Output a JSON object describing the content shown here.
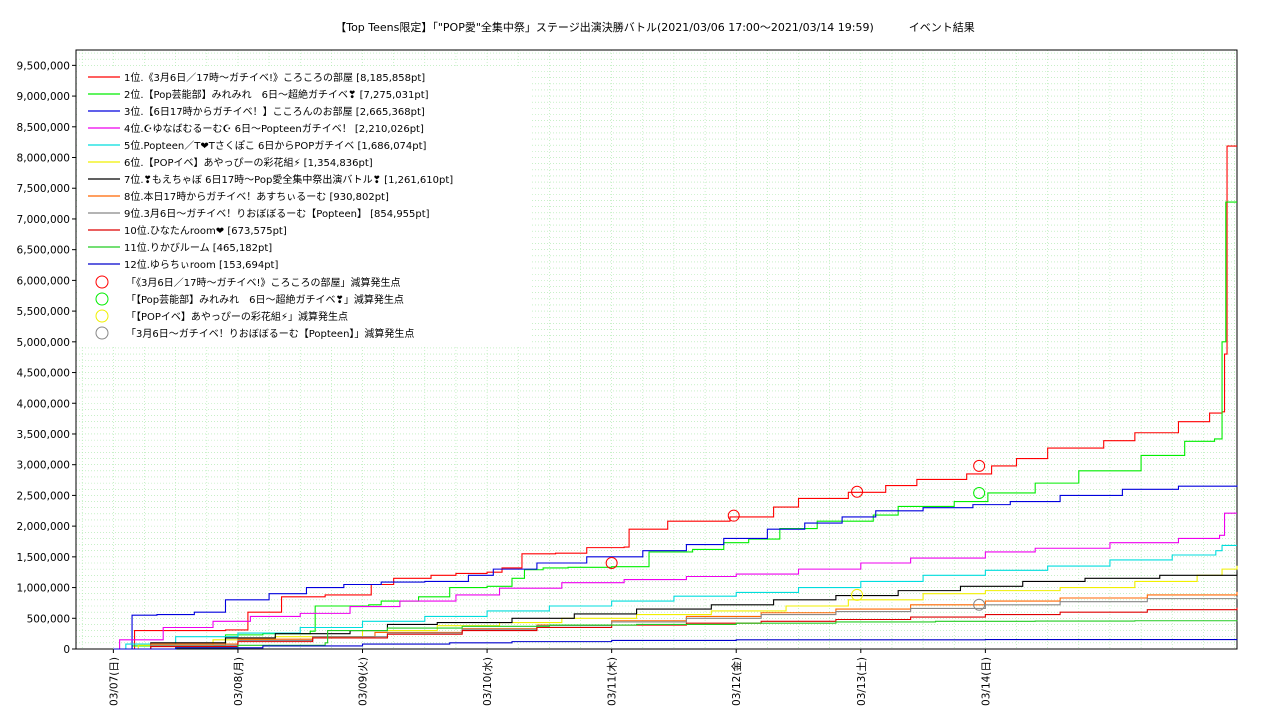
{
  "chart_data": {
    "type": "line",
    "title": "【Top Teens限定】「\"POP愛\"全集中祭」ステージ出演決勝バトル(2021/03/06 17:00～2021/03/14 19:59)          イベント結果",
    "xlabel": "",
    "ylabel": "",
    "ylim": [
      0,
      9750000
    ],
    "x_range_days": [
      "2021/03/06 17:00",
      "2021/03/14 19:59"
    ],
    "yticks": [
      "0",
      "500,000",
      "1,000,000",
      "1,500,000",
      "2,000,000",
      "2,500,000",
      "3,000,000",
      "3,500,000",
      "4,000,000",
      "4,500,000",
      "5,000,000",
      "5,500,000",
      "6,000,000",
      "6,500,000",
      "7,000,000",
      "7,500,000",
      "8,000,000",
      "8,500,000",
      "9,000,000",
      "9,500,000"
    ],
    "xticks": [
      "03/07(日)",
      "03/08(月)",
      "03/09(火)",
      "03/10(水)",
      "03/11(木)",
      "03/12(金)",
      "03/13(土)",
      "03/14(日)"
    ],
    "grid": true,
    "legend_position": "top-left",
    "series": [
      {
        "name": "1位.《3月6日／17時〜ガチイベ!》ころころの部屋 [8,185,858pt]",
        "color": "#ff0000",
        "points": [
          [
            0,
            0
          ],
          [
            0.17,
            300000
          ],
          [
            0.9,
            310000
          ],
          [
            1.08,
            600000
          ],
          [
            1.35,
            850000
          ],
          [
            1.7,
            880000
          ],
          [
            2.07,
            1050000
          ],
          [
            2.25,
            1150000
          ],
          [
            2.55,
            1200000
          ],
          [
            2.75,
            1230000
          ],
          [
            3.0,
            1250000
          ],
          [
            3.12,
            1320000
          ],
          [
            3.28,
            1550000
          ],
          [
            3.55,
            1560000
          ],
          [
            3.8,
            1650000
          ],
          [
            4.1,
            1660000
          ],
          [
            4.14,
            1950000
          ],
          [
            4.45,
            2080000
          ],
          [
            4.95,
            2150000
          ],
          [
            5.3,
            2310000
          ],
          [
            5.5,
            2450000
          ],
          [
            5.9,
            2550000
          ],
          [
            6.2,
            2660000
          ],
          [
            6.45,
            2760000
          ],
          [
            6.85,
            2850000
          ],
          [
            7.05,
            2980000
          ],
          [
            7.25,
            3100000
          ],
          [
            7.5,
            3270000
          ],
          [
            7.95,
            3390000
          ],
          [
            8.2,
            3520000
          ],
          [
            8.55,
            3700000
          ],
          [
            8.8,
            3840000
          ],
          [
            8.9,
            3860000
          ],
          [
            8.92,
            4800000
          ],
          [
            8.94,
            8185858
          ],
          [
            9.02,
            8185858
          ]
        ]
      },
      {
        "name": "2位.【Pop芸能部】みれみれ　6日〜超絶ガチイベ❣ [7,275,031pt]",
        "color": "#00ee00",
        "points": [
          [
            0,
            0
          ],
          [
            0.15,
            50000
          ],
          [
            0.9,
            230000
          ],
          [
            1.2,
            250000
          ],
          [
            1.58,
            290000
          ],
          [
            1.62,
            700000
          ],
          [
            2.05,
            720000
          ],
          [
            2.15,
            780000
          ],
          [
            2.45,
            850000
          ],
          [
            2.7,
            1000000
          ],
          [
            3.0,
            1020000
          ],
          [
            3.2,
            1150000
          ],
          [
            3.3,
            1290000
          ],
          [
            3.45,
            1320000
          ],
          [
            3.65,
            1330000
          ],
          [
            4.0,
            1340000
          ],
          [
            4.3,
            1580000
          ],
          [
            4.65,
            1620000
          ],
          [
            4.9,
            1730000
          ],
          [
            5.1,
            1790000
          ],
          [
            5.35,
            1960000
          ],
          [
            5.65,
            2080000
          ],
          [
            6.1,
            2180000
          ],
          [
            6.3,
            2320000
          ],
          [
            6.75,
            2400000
          ],
          [
            7.02,
            2540000
          ],
          [
            7.4,
            2700000
          ],
          [
            7.75,
            2900000
          ],
          [
            8.25,
            3150000
          ],
          [
            8.6,
            3380000
          ],
          [
            8.84,
            3420000
          ],
          [
            8.9,
            5000000
          ],
          [
            8.93,
            7275031
          ],
          [
            9.02,
            7275031
          ]
        ]
      },
      {
        "name": "3位.【6日17時からガチイベ！】こころんのお部屋 [2,665,368pt]",
        "color": "#0000dd",
        "points": [
          [
            0,
            0
          ],
          [
            0.15,
            550000
          ],
          [
            0.35,
            560000
          ],
          [
            0.65,
            600000
          ],
          [
            0.9,
            800000
          ],
          [
            1.25,
            900000
          ],
          [
            1.55,
            1000000
          ],
          [
            1.85,
            1050000
          ],
          [
            2.15,
            1090000
          ],
          [
            2.5,
            1100000
          ],
          [
            2.85,
            1200000
          ],
          [
            3.05,
            1300000
          ],
          [
            3.4,
            1400000
          ],
          [
            3.8,
            1500000
          ],
          [
            4.25,
            1600000
          ],
          [
            4.6,
            1700000
          ],
          [
            4.9,
            1800000
          ],
          [
            5.25,
            1950000
          ],
          [
            5.55,
            2050000
          ],
          [
            5.85,
            2150000
          ],
          [
            6.12,
            2250000
          ],
          [
            6.5,
            2300000
          ],
          [
            6.9,
            2350000
          ],
          [
            7.2,
            2400000
          ],
          [
            7.6,
            2500000
          ],
          [
            8.1,
            2600000
          ],
          [
            8.55,
            2650000
          ],
          [
            9.02,
            2665368
          ]
        ]
      },
      {
        "name": "4位.☪ゆなばむるーむ☪ 6日〜Popteenガチイベ！ [2,210,026pt]",
        "color": "#ee00ee",
        "points": [
          [
            0,
            0
          ],
          [
            0.05,
            150000
          ],
          [
            0.4,
            350000
          ],
          [
            0.8,
            450000
          ],
          [
            1.1,
            530000
          ],
          [
            1.5,
            580000
          ],
          [
            1.9,
            690000
          ],
          [
            2.3,
            780000
          ],
          [
            2.75,
            880000
          ],
          [
            3.1,
            990000
          ],
          [
            3.6,
            1080000
          ],
          [
            4.1,
            1130000
          ],
          [
            4.6,
            1180000
          ],
          [
            5.0,
            1220000
          ],
          [
            5.5,
            1300000
          ],
          [
            6.0,
            1400000
          ],
          [
            6.4,
            1480000
          ],
          [
            7.0,
            1580000
          ],
          [
            7.4,
            1640000
          ],
          [
            8.0,
            1730000
          ],
          [
            8.55,
            1800000
          ],
          [
            8.88,
            1850000
          ],
          [
            8.92,
            2210026
          ],
          [
            9.02,
            2210026
          ]
        ]
      },
      {
        "name": "5位.Popteen／T❤Tさくぽこ 6日からPOPガチイベ [1,686,074pt]",
        "color": "#00dddd",
        "points": [
          [
            0,
            0
          ],
          [
            0.1,
            80000
          ],
          [
            0.5,
            200000
          ],
          [
            1.0,
            260000
          ],
          [
            1.5,
            350000
          ],
          [
            2.0,
            450000
          ],
          [
            2.5,
            530000
          ],
          [
            3.0,
            620000
          ],
          [
            3.5,
            700000
          ],
          [
            4.0,
            780000
          ],
          [
            4.5,
            860000
          ],
          [
            5.0,
            920000
          ],
          [
            5.5,
            1000000
          ],
          [
            6.0,
            1100000
          ],
          [
            6.5,
            1200000
          ],
          [
            7.0,
            1280000
          ],
          [
            7.5,
            1350000
          ],
          [
            8.0,
            1450000
          ],
          [
            8.5,
            1530000
          ],
          [
            8.85,
            1600000
          ],
          [
            8.9,
            1686074
          ],
          [
            9.02,
            1686074
          ]
        ]
      },
      {
        "name": "6位.【POPイベ】あやっぴーの彩花組⚡ [1,354,836pt]",
        "color": "#f0f000",
        "points": [
          [
            0,
            0
          ],
          [
            0.2,
            60000
          ],
          [
            0.8,
            150000
          ],
          [
            1.3,
            200000
          ],
          [
            2.0,
            300000
          ],
          [
            2.6,
            380000
          ],
          [
            3.1,
            430000
          ],
          [
            3.6,
            500000
          ],
          [
            4.2,
            560000
          ],
          [
            4.8,
            620000
          ],
          [
            5.4,
            700000
          ],
          [
            5.9,
            800000
          ],
          [
            6.5,
            900000
          ],
          [
            7.0,
            950000
          ],
          [
            7.6,
            1000000
          ],
          [
            8.2,
            1100000
          ],
          [
            8.7,
            1200000
          ],
          [
            8.9,
            1300000
          ],
          [
            9.02,
            1354836
          ]
        ]
      },
      {
        "name": "7位.❣もえちゃぼ 6日17時〜Pop愛全集中祭出演バトル❣ [1,261,610pt]",
        "color": "#000000",
        "points": [
          [
            0,
            0
          ],
          [
            0.3,
            100000
          ],
          [
            0.9,
            180000
          ],
          [
            1.3,
            250000
          ],
          [
            1.9,
            300000
          ],
          [
            2.2,
            400000
          ],
          [
            2.6,
            430000
          ],
          [
            3.2,
            500000
          ],
          [
            3.7,
            570000
          ],
          [
            4.2,
            650000
          ],
          [
            4.8,
            720000
          ],
          [
            5.3,
            800000
          ],
          [
            5.8,
            870000
          ],
          [
            6.3,
            950000
          ],
          [
            6.8,
            1020000
          ],
          [
            7.3,
            1100000
          ],
          [
            7.8,
            1150000
          ],
          [
            8.4,
            1200000
          ],
          [
            9.02,
            1261610
          ]
        ]
      },
      {
        "name": "8位.本日17時からガチイベ！あすちぃるーむ [930,802pt]",
        "color": "#ff6600",
        "points": [
          [
            0,
            0
          ],
          [
            0.3,
            80000
          ],
          [
            1.0,
            160000
          ],
          [
            1.6,
            200000
          ],
          [
            2.1,
            270000
          ],
          [
            2.8,
            330000
          ],
          [
            3.4,
            390000
          ],
          [
            4.0,
            460000
          ],
          [
            4.6,
            530000
          ],
          [
            5.2,
            590000
          ],
          [
            5.8,
            650000
          ],
          [
            6.4,
            720000
          ],
          [
            7.0,
            780000
          ],
          [
            7.6,
            830000
          ],
          [
            8.3,
            880000
          ],
          [
            9.02,
            930802
          ]
        ]
      },
      {
        "name": "9位.3月6日〜ガチイベ！りおぼぼるーむ【Popteen】 [854,955pt]",
        "color": "#888888",
        "points": [
          [
            0,
            0
          ],
          [
            0.3,
            60000
          ],
          [
            1.0,
            140000
          ],
          [
            1.6,
            200000
          ],
          [
            2.2,
            260000
          ],
          [
            2.8,
            320000
          ],
          [
            3.4,
            380000
          ],
          [
            4.0,
            440000
          ],
          [
            4.6,
            500000
          ],
          [
            5.2,
            560000
          ],
          [
            5.8,
            610000
          ],
          [
            6.4,
            660000
          ],
          [
            7.0,
            720000
          ],
          [
            7.6,
            770000
          ],
          [
            8.3,
            820000
          ],
          [
            9.02,
            854955
          ]
        ]
      },
      {
        "name": "10位.ひなたんroom❤ [673,575pt]",
        "color": "#dd0000",
        "points": [
          [
            0,
            0
          ],
          [
            0.3,
            40000
          ],
          [
            1.0,
            120000
          ],
          [
            1.6,
            180000
          ],
          [
            2.2,
            240000
          ],
          [
            2.8,
            300000
          ],
          [
            3.4,
            350000
          ],
          [
            4.0,
            390000
          ],
          [
            4.6,
            420000
          ],
          [
            5.2,
            450000
          ],
          [
            5.8,
            480000
          ],
          [
            6.4,
            520000
          ],
          [
            7.0,
            560000
          ],
          [
            7.6,
            600000
          ],
          [
            8.3,
            640000
          ],
          [
            9.02,
            673575
          ]
        ]
      },
      {
        "name": "11位.りかびルーム [465,182pt]",
        "color": "#22cc22",
        "points": [
          [
            0,
            0
          ],
          [
            0.5,
            20000
          ],
          [
            1.0,
            60000
          ],
          [
            1.7,
            100000
          ],
          [
            1.72,
            300000
          ],
          [
            2.2,
            340000
          ],
          [
            2.8,
            370000
          ],
          [
            3.5,
            390000
          ],
          [
            4.2,
            400000
          ],
          [
            5.0,
            420000
          ],
          [
            5.8,
            440000
          ],
          [
            6.6,
            450000
          ],
          [
            7.4,
            455000
          ],
          [
            8.2,
            460000
          ],
          [
            9.02,
            465182
          ]
        ]
      },
      {
        "name": "12位.ゆらちぃroom [153,694pt]",
        "color": "#0000cc",
        "points": [
          [
            0,
            0
          ],
          [
            0.5,
            20000
          ],
          [
            1.2,
            50000
          ],
          [
            2.0,
            80000
          ],
          [
            2.7,
            100000
          ],
          [
            3.2,
            120000
          ],
          [
            4.0,
            140000
          ],
          [
            5.0,
            150000
          ],
          [
            6.0,
            150000
          ],
          [
            7.0,
            153000
          ],
          [
            9.02,
            153694
          ]
        ]
      }
    ],
    "penalty_points": [
      {
        "label": "「《3月6日／17時〜ガチイベ!》ころころの部屋」減算発生点",
        "color": "#ff0000",
        "points": [
          [
            4.0,
            1400000
          ],
          [
            4.98,
            2170000
          ],
          [
            5.97,
            2560000
          ],
          [
            6.95,
            2980000
          ]
        ]
      },
      {
        "label": "「【Pop芸能部】みれみれ　6日〜超絶ガチイベ❣」減算発生点",
        "color": "#00ee00",
        "points": [
          [
            6.95,
            2540000
          ]
        ]
      },
      {
        "label": "「【POPイベ】あやっぴーの彩花組⚡」減算発生点",
        "color": "#f0f000",
        "points": [
          [
            5.97,
            880000
          ]
        ]
      },
      {
        "label": "「3月6日〜ガチイベ！りおぼぼるーむ【Popteen】」減算発生点",
        "color": "#888888",
        "points": [
          [
            6.95,
            720000
          ]
        ]
      }
    ]
  }
}
